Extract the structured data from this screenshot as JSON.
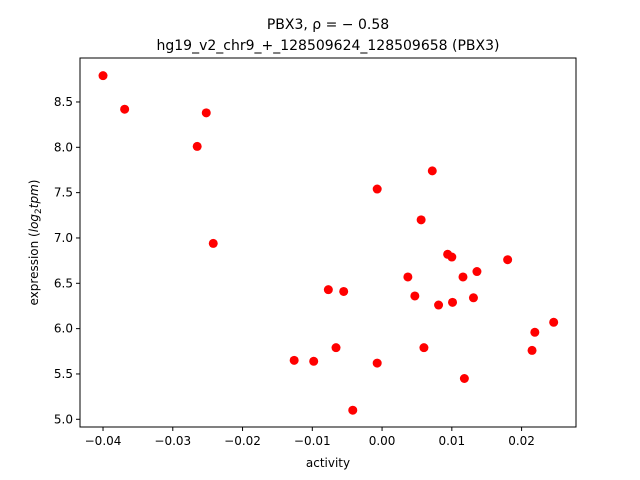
{
  "chart_data": {
    "type": "scatter",
    "title_line1": "PBX3, ρ = − 0.58",
    "title_line2": "hg19_v2_chr9_+_128509624_128509658 (PBX3)",
    "xlabel": "activity",
    "ylabel_prefix": "expression (",
    "ylabel_math": "log",
    "ylabel_sub": "2",
    "ylabel_math2": "tpm",
    "ylabel_suffix": ")",
    "xlim": [
      -0.0433,
      0.0278
    ],
    "ylim": [
      4.915,
      8.985
    ],
    "xticks": [
      -0.04,
      -0.03,
      -0.02,
      -0.01,
      0.0,
      0.01,
      0.02
    ],
    "xtick_labels": [
      "−0.04",
      "−0.03",
      "−0.02",
      "−0.01",
      "0.00",
      "0.01",
      "0.02"
    ],
    "yticks": [
      5.0,
      5.5,
      6.0,
      6.5,
      7.0,
      7.5,
      8.0,
      8.5
    ],
    "ytick_labels": [
      "5.0",
      "5.5",
      "6.0",
      "6.5",
      "7.0",
      "7.5",
      "8.0",
      "8.5"
    ],
    "marker_color": "#ff0000",
    "points": [
      {
        "x": -0.04,
        "y": 8.79
      },
      {
        "x": -0.0369,
        "y": 8.42
      },
      {
        "x": -0.0252,
        "y": 8.38
      },
      {
        "x": -0.0265,
        "y": 8.01
      },
      {
        "x": -0.0242,
        "y": 6.94
      },
      {
        "x": -0.0126,
        "y": 5.65
      },
      {
        "x": -0.0098,
        "y": 5.64
      },
      {
        "x": -0.0077,
        "y": 6.43
      },
      {
        "x": -0.0066,
        "y": 5.79
      },
      {
        "x": -0.0055,
        "y": 6.41
      },
      {
        "x": -0.0042,
        "y": 5.1
      },
      {
        "x": -0.0007,
        "y": 5.62
      },
      {
        "x": -0.0007,
        "y": 7.54
      },
      {
        "x": 0.0037,
        "y": 6.57
      },
      {
        "x": 0.0047,
        "y": 6.36
      },
      {
        "x": 0.0056,
        "y": 7.2
      },
      {
        "x": 0.006,
        "y": 5.79
      },
      {
        "x": 0.0072,
        "y": 7.74
      },
      {
        "x": 0.0081,
        "y": 6.26
      },
      {
        "x": 0.0094,
        "y": 6.82
      },
      {
        "x": 0.01,
        "y": 6.79
      },
      {
        "x": 0.0101,
        "y": 6.29
      },
      {
        "x": 0.0116,
        "y": 6.57
      },
      {
        "x": 0.0118,
        "y": 5.45
      },
      {
        "x": 0.0131,
        "y": 6.34
      },
      {
        "x": 0.0136,
        "y": 6.63
      },
      {
        "x": 0.018,
        "y": 6.76
      },
      {
        "x": 0.0215,
        "y": 5.76
      },
      {
        "x": 0.0219,
        "y": 5.96
      },
      {
        "x": 0.0246,
        "y": 6.07
      }
    ]
  }
}
